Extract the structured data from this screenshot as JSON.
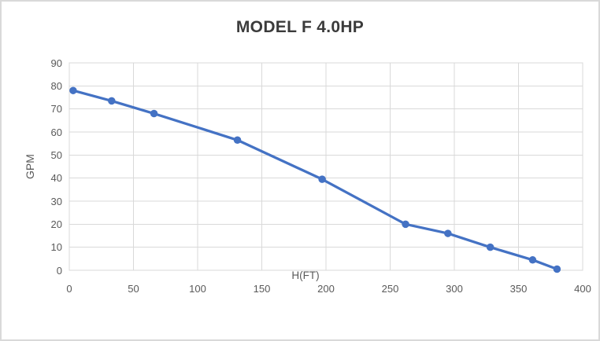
{
  "chart_data": {
    "type": "line",
    "title": "MODEL F 4.0HP",
    "xlabel": "H(FT)",
    "ylabel": "GPM",
    "x": [
      3,
      33,
      66,
      131,
      197,
      262,
      295,
      328,
      361,
      380
    ],
    "y": [
      78,
      73.5,
      68,
      56.5,
      39.5,
      20,
      16,
      10,
      4.5,
      0.5
    ],
    "xlim": [
      0,
      400
    ],
    "ylim": [
      0,
      90
    ],
    "x_ticks": [
      0,
      50,
      100,
      150,
      200,
      250,
      300,
      350,
      400
    ],
    "y_ticks": [
      0,
      10,
      20,
      30,
      40,
      50,
      60,
      70,
      80,
      90
    ],
    "grid": true,
    "legend": false,
    "marker": "circle",
    "colors": {
      "series": "#4472C4",
      "gridline": "#d9d9d9",
      "plot_border": "#d9d9d9",
      "tick_label": "#595959",
      "axis_title": "#595959",
      "title": "#3b3b3b",
      "chart_border": "#d9d9d9",
      "background": "#ffffff"
    }
  }
}
